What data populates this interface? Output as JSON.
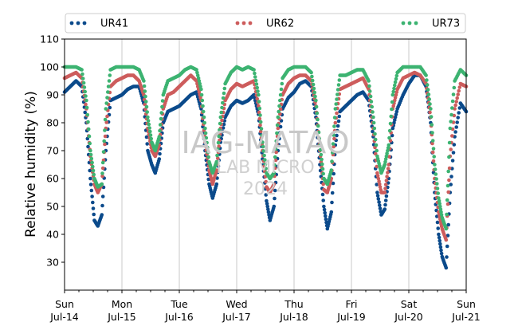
{
  "chart_data": {
    "type": "scatter",
    "ylabel": "Relative humidity (%)",
    "ylim": [
      20,
      110
    ],
    "yticks": [
      30,
      40,
      50,
      60,
      70,
      80,
      90,
      100,
      110
    ],
    "xlim_days": [
      0,
      7
    ],
    "xticks": [
      {
        "day": "Sun",
        "date": "Jul-14"
      },
      {
        "day": "Mon",
        "date": "Jul-15"
      },
      {
        "day": "Tue",
        "date": "Jul-16"
      },
      {
        "day": "Wed",
        "date": "Jul-17"
      },
      {
        "day": "Thu",
        "date": "Jul-18"
      },
      {
        "day": "Fri",
        "date": "Jul-19"
      },
      {
        "day": "Sat",
        "date": "Jul-20"
      },
      {
        "day": "Sun",
        "date": "Jul-21"
      }
    ],
    "grid": "vertical",
    "legend": "top",
    "watermark": [
      "IAG-MATAO",
      "LAB MICRO",
      "2024"
    ],
    "series": [
      {
        "name": "UR41",
        "color": "#0b4a8b",
        "points": [
          [
            0.0,
            91
          ],
          [
            0.1,
            93
          ],
          [
            0.2,
            95
          ],
          [
            0.3,
            93
          ],
          [
            0.38,
            80
          ],
          [
            0.45,
            60
          ],
          [
            0.52,
            45
          ],
          [
            0.58,
            43
          ],
          [
            0.65,
            47
          ],
          [
            0.72,
            70
          ],
          [
            0.8,
            88
          ],
          [
            0.9,
            89
          ],
          [
            1.0,
            90
          ],
          [
            1.1,
            92
          ],
          [
            1.2,
            93
          ],
          [
            1.3,
            93
          ],
          [
            1.38,
            87
          ],
          [
            1.45,
            70
          ],
          [
            1.52,
            65
          ],
          [
            1.58,
            62
          ],
          [
            1.65,
            67
          ],
          [
            1.72,
            80
          ],
          [
            1.8,
            84
          ],
          [
            1.9,
            85
          ],
          [
            2.0,
            86
          ],
          [
            2.1,
            88
          ],
          [
            2.2,
            90
          ],
          [
            2.3,
            91
          ],
          [
            2.38,
            85
          ],
          [
            2.45,
            70
          ],
          [
            2.52,
            58
          ],
          [
            2.58,
            53
          ],
          [
            2.65,
            58
          ],
          [
            2.72,
            73
          ],
          [
            2.8,
            82
          ],
          [
            2.9,
            86
          ],
          [
            3.0,
            88
          ],
          [
            3.1,
            87
          ],
          [
            3.2,
            88
          ],
          [
            3.3,
            90
          ],
          [
            3.38,
            83
          ],
          [
            3.45,
            67
          ],
          [
            3.52,
            52
          ],
          [
            3.58,
            45
          ],
          [
            3.65,
            50
          ],
          [
            3.72,
            70
          ],
          [
            3.8,
            85
          ],
          [
            3.9,
            89
          ],
          [
            4.0,
            91
          ],
          [
            4.1,
            94
          ],
          [
            4.2,
            95
          ],
          [
            4.3,
            93
          ],
          [
            4.38,
            82
          ],
          [
            4.45,
            65
          ],
          [
            4.52,
            50
          ],
          [
            4.58,
            42
          ],
          [
            4.65,
            48
          ],
          [
            4.72,
            72
          ],
          [
            4.8,
            84
          ],
          [
            4.9,
            86
          ],
          [
            5.0,
            88
          ],
          [
            5.1,
            90
          ],
          [
            5.2,
            91
          ],
          [
            5.3,
            88
          ],
          [
            5.38,
            75
          ],
          [
            5.45,
            55
          ],
          [
            5.52,
            47
          ],
          [
            5.58,
            49
          ],
          [
            5.65,
            60
          ],
          [
            5.72,
            78
          ],
          [
            5.8,
            85
          ],
          [
            5.9,
            90
          ],
          [
            6.0,
            94
          ],
          [
            6.1,
            97
          ],
          [
            6.2,
            97
          ],
          [
            6.3,
            93
          ],
          [
            6.38,
            80
          ],
          [
            6.45,
            55
          ],
          [
            6.52,
            40
          ],
          [
            6.58,
            32
          ],
          [
            6.65,
            28
          ],
          [
            6.72,
            55
          ],
          [
            6.8,
            75
          ],
          [
            6.9,
            87
          ],
          [
            7.0,
            84
          ]
        ]
      },
      {
        "name": "UR62",
        "color": "#cd5c5c",
        "points": [
          [
            0.0,
            96
          ],
          [
            0.1,
            97
          ],
          [
            0.2,
            98
          ],
          [
            0.3,
            96
          ],
          [
            0.38,
            85
          ],
          [
            0.45,
            68
          ],
          [
            0.52,
            58
          ],
          [
            0.58,
            55
          ],
          [
            0.65,
            58
          ],
          [
            0.72,
            78
          ],
          [
            0.8,
            93
          ],
          [
            0.9,
            95
          ],
          [
            1.0,
            96
          ],
          [
            1.1,
            97
          ],
          [
            1.2,
            97
          ],
          [
            1.3,
            95
          ],
          [
            1.38,
            90
          ],
          [
            1.45,
            78
          ],
          [
            1.52,
            70
          ],
          [
            1.58,
            68
          ],
          [
            1.65,
            72
          ],
          [
            1.72,
            85
          ],
          [
            1.8,
            90
          ],
          [
            1.9,
            91
          ],
          [
            2.0,
            93
          ],
          [
            2.1,
            95
          ],
          [
            2.2,
            97
          ],
          [
            2.3,
            95
          ],
          [
            2.38,
            88
          ],
          [
            2.45,
            73
          ],
          [
            2.52,
            63
          ],
          [
            2.58,
            58
          ],
          [
            2.65,
            63
          ],
          [
            2.72,
            78
          ],
          [
            2.8,
            88
          ],
          [
            2.9,
            92
          ],
          [
            3.0,
            94
          ],
          [
            3.1,
            93
          ],
          [
            3.2,
            94
          ],
          [
            3.3,
            95
          ],
          [
            3.38,
            86
          ],
          [
            3.45,
            70
          ],
          [
            3.52,
            57
          ],
          [
            3.58,
            55
          ],
          [
            3.65,
            58
          ],
          [
            3.72,
            78
          ],
          [
            3.8,
            90
          ],
          [
            3.9,
            94
          ],
          [
            4.0,
            96
          ],
          [
            4.1,
            97
          ],
          [
            4.2,
            97
          ],
          [
            4.3,
            95
          ],
          [
            4.38,
            86
          ],
          [
            4.45,
            70
          ],
          [
            4.52,
            56
          ],
          [
            4.58,
            55
          ],
          [
            4.65,
            60
          ],
          [
            4.72,
            80
          ],
          [
            4.8,
            92
          ],
          [
            4.9,
            93
          ],
          [
            5.0,
            94
          ],
          [
            5.1,
            95
          ],
          [
            5.2,
            96
          ],
          [
            5.3,
            92
          ],
          [
            5.38,
            78
          ],
          [
            5.45,
            62
          ],
          [
            5.52,
            55
          ],
          [
            5.58,
            55
          ],
          [
            5.65,
            65
          ],
          [
            5.72,
            85
          ],
          [
            5.8,
            92
          ],
          [
            5.9,
            96
          ],
          [
            6.0,
            97
          ],
          [
            6.1,
            98
          ],
          [
            6.2,
            97
          ],
          [
            6.3,
            94
          ],
          [
            6.38,
            82
          ],
          [
            6.45,
            60
          ],
          [
            6.52,
            48
          ],
          [
            6.58,
            42
          ],
          [
            6.65,
            38
          ],
          [
            6.72,
            68
          ],
          [
            6.8,
            85
          ],
          [
            6.9,
            94
          ],
          [
            7.0,
            93
          ]
        ]
      },
      {
        "name": "UR73",
        "color": "#3cb371",
        "points": [
          [
            0.0,
            100
          ],
          [
            0.1,
            100
          ],
          [
            0.2,
            100
          ],
          [
            0.3,
            99
          ],
          [
            0.38,
            88
          ],
          [
            0.45,
            70
          ],
          [
            0.52,
            60
          ],
          [
            0.58,
            57
          ],
          [
            0.65,
            58
          ],
          [
            0.72,
            85
          ],
          [
            0.8,
            99
          ],
          [
            0.9,
            100
          ],
          [
            1.0,
            100
          ],
          [
            1.1,
            100
          ],
          [
            1.2,
            100
          ],
          [
            1.3,
            99
          ],
          [
            1.38,
            95
          ],
          [
            1.45,
            82
          ],
          [
            1.52,
            73
          ],
          [
            1.58,
            70
          ],
          [
            1.65,
            75
          ],
          [
            1.72,
            90
          ],
          [
            1.8,
            95
          ],
          [
            1.9,
            96
          ],
          [
            2.0,
            97
          ],
          [
            2.1,
            99
          ],
          [
            2.2,
            100
          ],
          [
            2.3,
            99
          ],
          [
            2.38,
            92
          ],
          [
            2.45,
            78
          ],
          [
            2.52,
            66
          ],
          [
            2.58,
            62
          ],
          [
            2.65,
            66
          ],
          [
            2.72,
            82
          ],
          [
            2.8,
            94
          ],
          [
            2.9,
            98
          ],
          [
            3.0,
            100
          ],
          [
            3.1,
            99
          ],
          [
            3.2,
            100
          ],
          [
            3.3,
            99
          ],
          [
            3.38,
            90
          ],
          [
            3.45,
            73
          ],
          [
            3.52,
            62
          ],
          [
            3.58,
            60
          ],
          [
            3.65,
            62
          ],
          [
            3.72,
            82
          ],
          [
            3.8,
            96
          ],
          [
            3.9,
            99
          ],
          [
            4.0,
            100
          ],
          [
            4.1,
            100
          ],
          [
            4.2,
            100
          ],
          [
            4.3,
            98
          ],
          [
            4.38,
            88
          ],
          [
            4.45,
            72
          ],
          [
            4.52,
            60
          ],
          [
            4.58,
            58
          ],
          [
            4.65,
            63
          ],
          [
            4.72,
            85
          ],
          [
            4.8,
            97
          ],
          [
            4.9,
            97
          ],
          [
            5.0,
            98
          ],
          [
            5.1,
            99
          ],
          [
            5.2,
            99
          ],
          [
            5.3,
            95
          ],
          [
            5.38,
            82
          ],
          [
            5.45,
            68
          ],
          [
            5.52,
            62
          ],
          [
            5.58,
            65
          ],
          [
            5.65,
            72
          ],
          [
            5.72,
            90
          ],
          [
            5.8,
            98
          ],
          [
            5.9,
            100
          ],
          [
            6.0,
            100
          ],
          [
            6.1,
            100
          ],
          [
            6.2,
            100
          ],
          [
            6.3,
            97
          ],
          [
            6.38,
            85
          ],
          [
            6.45,
            65
          ],
          [
            6.52,
            53
          ],
          [
            6.58,
            46
          ],
          [
            6.65,
            42
          ],
          [
            6.72,
            78
          ],
          [
            6.8,
            95
          ],
          [
            6.9,
            99
          ],
          [
            7.0,
            97
          ]
        ]
      }
    ]
  }
}
